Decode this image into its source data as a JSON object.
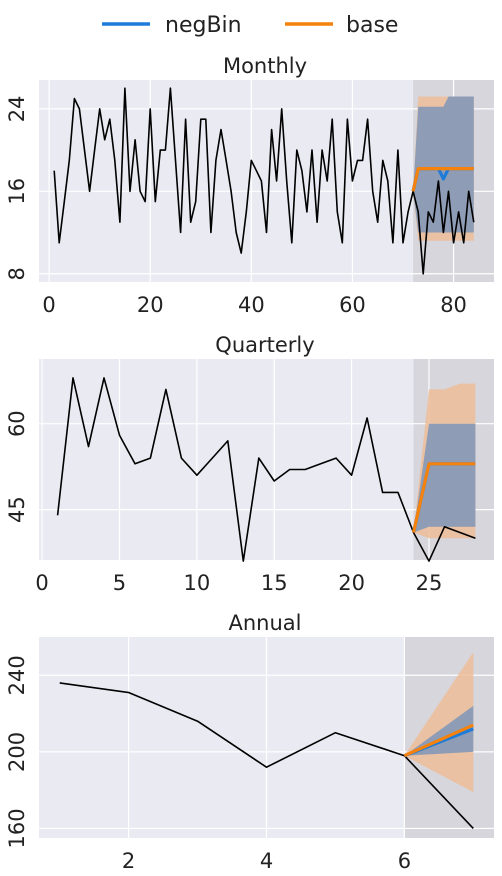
{
  "legend": {
    "items": [
      {
        "label": "negBin",
        "color": "#1f7bd8"
      },
      {
        "label": "base",
        "color": "#f5820d"
      }
    ]
  },
  "colors": {
    "axes_bg": "#eaeaf2",
    "forecast_shade": "#d6d6dc",
    "grid": "#ffffff",
    "actual_line": "#000000",
    "negbin_band": "#7e95b8",
    "base_band": "#efbd99"
  },
  "chart_data": [
    {
      "type": "line",
      "title": "Monthly",
      "xlim": [
        -2,
        88
      ],
      "ylim": [
        7.2,
        26.8
      ],
      "xticks": [
        0,
        20,
        40,
        60,
        80
      ],
      "xtick_labels": [
        "0",
        "20",
        "40",
        "60",
        "80"
      ],
      "yticks": [
        8,
        16,
        24
      ],
      "ytick_labels": [
        "8",
        "16",
        "24"
      ],
      "forecast_start": 72,
      "series": [
        {
          "name": "actual",
          "x": [
            1,
            2,
            3,
            4,
            5,
            6,
            7,
            8,
            9,
            10,
            11,
            12,
            13,
            14,
            15,
            16,
            17,
            18,
            19,
            20,
            21,
            22,
            23,
            24,
            25,
            26,
            27,
            28,
            29,
            30,
            31,
            32,
            33,
            34,
            35,
            36,
            37,
            38,
            39,
            40,
            41,
            42,
            43,
            44,
            45,
            46,
            47,
            48,
            49,
            50,
            51,
            52,
            53,
            54,
            55,
            56,
            57,
            58,
            59,
            60,
            61,
            62,
            63,
            64,
            65,
            66,
            67,
            68,
            69,
            70,
            71,
            72,
            73,
            74,
            75,
            76,
            77,
            78,
            79,
            80,
            81,
            82,
            83,
            84
          ],
          "y": [
            18,
            11,
            15,
            19,
            25,
            24,
            20,
            16,
            20,
            24,
            21,
            23,
            19,
            13,
            26,
            16,
            21,
            16,
            15,
            24,
            15,
            20,
            20,
            26,
            19,
            12,
            23,
            13,
            15,
            23,
            23,
            12,
            19,
            22,
            19,
            16,
            12,
            10,
            14,
            19,
            18,
            17,
            12,
            22,
            17,
            24,
            17,
            11,
            20,
            18,
            14,
            20,
            13,
            20,
            17,
            23,
            14,
            11,
            23,
            17,
            19,
            19,
            23,
            16,
            13,
            19,
            17,
            11,
            20,
            11,
            14,
            16,
            14,
            8,
            14,
            13,
            17,
            12,
            16,
            11,
            14,
            11,
            16,
            13
          ]
        },
        {
          "name": "negBin",
          "x": [
            72,
            73,
            74,
            75,
            76,
            77,
            78,
            79,
            80,
            81,
            82,
            83,
            84
          ],
          "y": [
            16,
            18.2,
            18.2,
            18.2,
            18.2,
            18.2,
            17.2,
            18.2,
            18.2,
            18.2,
            18.2,
            18.2,
            18.2
          ],
          "lower": [
            16,
            12,
            12,
            12,
            12,
            12,
            12,
            12,
            12,
            12,
            12,
            12,
            12
          ],
          "upper": [
            16,
            24.2,
            24.2,
            24.2,
            24.2,
            24.2,
            24.2,
            25.2,
            25.2,
            25.2,
            25.2,
            25.2,
            25.2
          ]
        },
        {
          "name": "base",
          "x": [
            72,
            73,
            74,
            75,
            76,
            77,
            78,
            79,
            80,
            81,
            82,
            83,
            84
          ],
          "y": [
            16,
            18.2,
            18.2,
            18.2,
            18.2,
            18.2,
            18.2,
            18.2,
            18.2,
            18.2,
            18.2,
            18.2,
            18.2
          ],
          "lower": [
            16,
            11.2,
            11.2,
            11.2,
            11.2,
            11.2,
            11.2,
            11.2,
            11.2,
            11.2,
            11.2,
            11.2,
            11.2
          ],
          "upper": [
            16,
            25.2,
            25.2,
            25.2,
            25.2,
            25.2,
            25.2,
            25.2,
            25.2,
            25.2,
            25.2,
            25.2,
            25.2
          ]
        }
      ]
    },
    {
      "type": "line",
      "title": "Quarterly",
      "xlim": [
        -0.2,
        29.2
      ],
      "ylim": [
        36.2,
        71.3
      ],
      "xticks": [
        0,
        5,
        10,
        15,
        20,
        25
      ],
      "xtick_labels": [
        "0",
        "5",
        "10",
        "15",
        "20",
        "25"
      ],
      "yticks": [
        45,
        60
      ],
      "ytick_labels": [
        "45",
        "60"
      ],
      "forecast_start": 24,
      "series": [
        {
          "name": "actual",
          "x": [
            1,
            2,
            3,
            4,
            5,
            6,
            7,
            8,
            9,
            10,
            11,
            12,
            13,
            14,
            15,
            16,
            17,
            18,
            19,
            20,
            21,
            22,
            23,
            24,
            25,
            26,
            27,
            28
          ],
          "y": [
            44,
            68,
            56,
            68,
            58,
            53,
            54,
            66,
            54,
            51,
            54,
            57,
            36,
            54,
            50,
            52,
            52,
            53,
            54,
            51,
            61,
            48,
            48,
            41,
            36,
            42,
            41,
            40
          ]
        },
        {
          "name": "negBin",
          "x": [
            24,
            25,
            26,
            27,
            28
          ],
          "y": [
            41,
            53,
            53,
            53,
            53
          ],
          "lower": [
            41,
            42,
            42,
            42,
            42
          ],
          "upper": [
            41,
            60,
            60,
            60,
            60
          ]
        },
        {
          "name": "base",
          "x": [
            24,
            25,
            26,
            27,
            28
          ],
          "y": [
            41,
            53,
            53,
            53,
            53
          ],
          "lower": [
            41,
            40,
            40,
            40,
            40
          ],
          "upper": [
            41,
            66,
            66,
            67,
            67
          ]
        }
      ]
    },
    {
      "type": "line",
      "title": "Annual",
      "xlim": [
        0.7,
        7.3
      ],
      "ylim": [
        155,
        260
      ],
      "xticks": [
        2,
        4,
        6
      ],
      "xtick_labels": [
        "2",
        "4",
        "6"
      ],
      "yticks": [
        160,
        200,
        240
      ],
      "ytick_labels": [
        "160",
        "200",
        "240"
      ],
      "forecast_start": 6,
      "series": [
        {
          "name": "actual",
          "x": [
            1,
            2,
            3,
            4,
            5,
            6,
            7
          ],
          "y": [
            236,
            231,
            216,
            192,
            210,
            198,
            160
          ]
        },
        {
          "name": "negBin",
          "x": [
            6,
            7
          ],
          "y": [
            198,
            212
          ],
          "lower": [
            198,
            200
          ],
          "upper": [
            198,
            224
          ]
        },
        {
          "name": "base",
          "x": [
            6,
            7
          ],
          "y": [
            198,
            214
          ],
          "lower": [
            198,
            179
          ],
          "upper": [
            198,
            252
          ]
        }
      ]
    }
  ]
}
